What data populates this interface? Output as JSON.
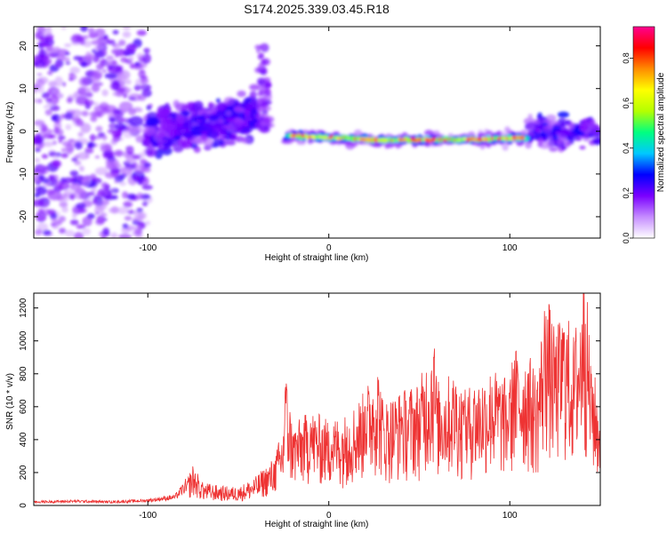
{
  "title": "S174.2025.339.03.45.R18",
  "chart_data": [
    {
      "type": "heatmap",
      "xlabel": "Height of straight line (km)",
      "ylabel": "Frequency (Hz)",
      "xlim": [
        -163,
        150
      ],
      "ylim": [
        -25,
        24.5
      ],
      "xticks": [
        -100,
        0,
        100
      ],
      "yticks": [
        -20,
        -10,
        0,
        10,
        20
      ],
      "colorbar": {
        "label": "Normalized spectral amplitude",
        "range": [
          0,
          0.94
        ],
        "ticks": [
          "0.0",
          "0.2",
          "0.4",
          "0.6",
          "0.8"
        ],
        "colors": [
          "#ffffff",
          "#c58cff",
          "#7a00ff",
          "#0000ff",
          "#00c8ff",
          "#00ff80",
          "#b4ff00",
          "#ffff00",
          "#ff8c00",
          "#ff0000",
          "#ff0090"
        ]
      },
      "regions": [
        {
          "name": "noise scatter",
          "x": [
            -163,
            -100
          ],
          "freq": [
            -25,
            24.5
          ],
          "amplitude": 0.15
        },
        {
          "name": "rising band",
          "x": [
            -100,
            -40
          ],
          "freq": [
            -8,
            12
          ],
          "amplitude": 0.2
        },
        {
          "name": "peak spike",
          "x": [
            -36,
            -36
          ],
          "freq": [
            0,
            20
          ],
          "amplitude": 0.2
        },
        {
          "name": "steady tone",
          "x": [
            -22,
            110
          ],
          "freq": [
            -2,
            -1
          ],
          "amplitude": 0.9
        },
        {
          "name": "tail",
          "x": [
            110,
            150
          ],
          "freq": [
            -8,
            8
          ],
          "amplitude": 0.3
        }
      ],
      "ridge": {
        "x": [
          -22,
          0,
          30,
          60,
          90,
          110
        ],
        "freq": [
          -1.0,
          -1.5,
          -2.0,
          -2.0,
          -1.8,
          -1.5
        ]
      }
    },
    {
      "type": "line",
      "xlabel": "Height of straight line (km)",
      "ylabel": "SNR (10 * v/v)",
      "xlim": [
        -163,
        150
      ],
      "ylim": [
        0,
        1290
      ],
      "xticks": [
        -100,
        0,
        100
      ],
      "yticks": [
        0,
        200,
        400,
        600,
        800,
        1000,
        1200
      ],
      "series": [
        {
          "name": "SNR",
          "color": "#ee3333",
          "x": [
            -163,
            -140,
            -120,
            -100,
            -85,
            -78,
            -75,
            -70,
            -60,
            -50,
            -40,
            -30,
            -25,
            -24,
            -20,
            -10,
            0,
            10,
            20,
            27,
            30,
            40,
            50,
            58,
            60,
            70,
            75,
            80,
            90,
            100,
            102,
            110,
            115,
            120,
            125,
            130,
            135,
            140,
            141,
            145,
            150
          ],
          "y": [
            25,
            30,
            25,
            35,
            60,
            150,
            210,
            120,
            100,
            95,
            150,
            250,
            420,
            720,
            420,
            500,
            450,
            480,
            600,
            780,
            550,
            600,
            650,
            900,
            650,
            700,
            600,
            650,
            720,
            650,
            830,
            800,
            700,
            1150,
            900,
            1050,
            900,
            1100,
            1290,
            800,
            500
          ]
        }
      ]
    }
  ]
}
